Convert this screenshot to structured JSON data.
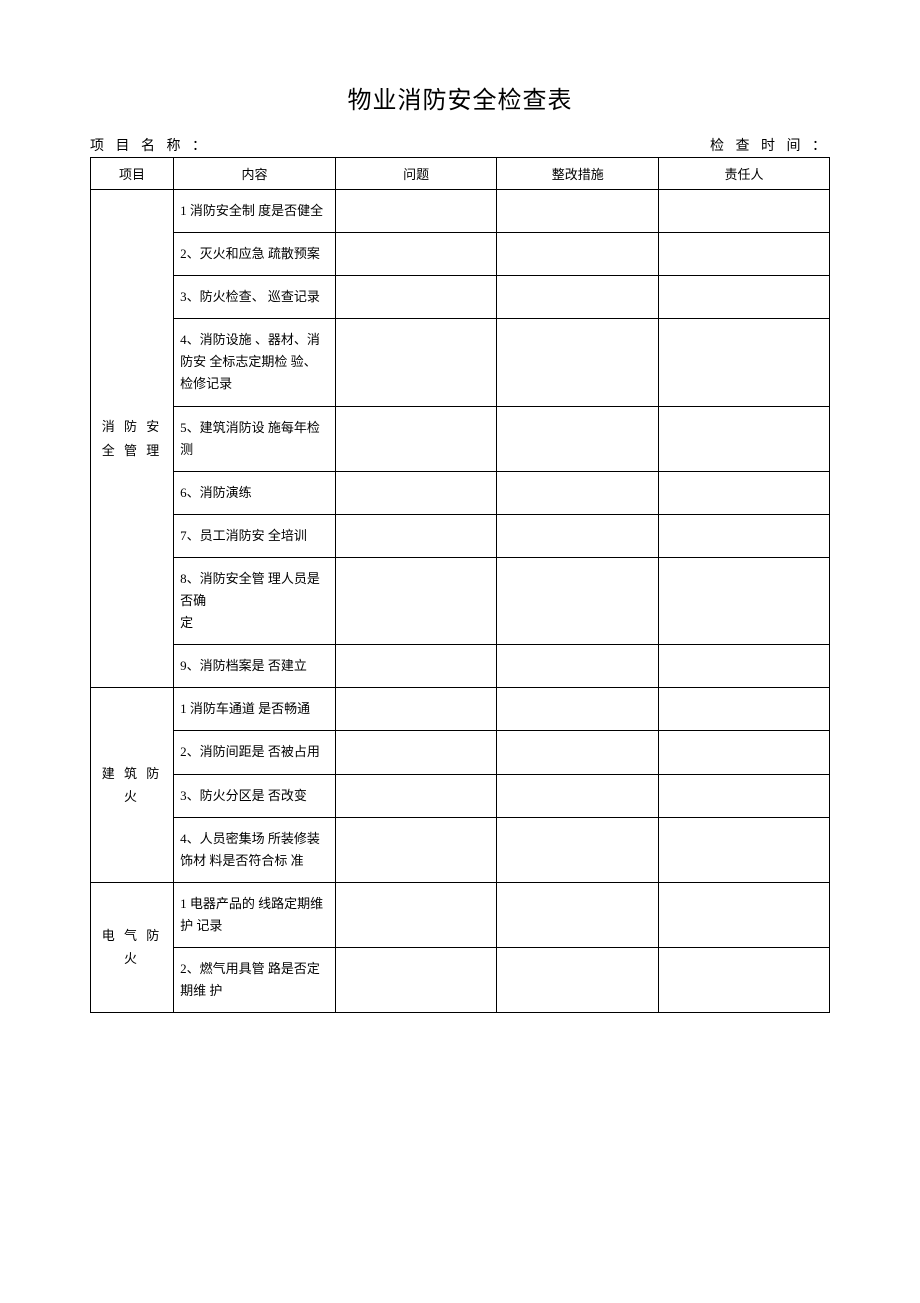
{
  "title": "物业消防安全检查表",
  "meta": {
    "project_label": "项 目 名 称 ：",
    "time_label": "检 查 时 间 ："
  },
  "headers": {
    "project": "项目",
    "content": "内容",
    "problem": "问题",
    "action": "整改措施",
    "person": "责任人"
  },
  "sections": [
    {
      "category": "消 防 安 全 管 理",
      "items": [
        "1 消防安全制 度是否健全",
        "2、灭火和应急 疏散预案",
        "3、防火检查、 巡查记录",
        "4、消防设施 、器材、消防安 全标志定期检 验、检修记录",
        "5、建筑消防设 施每年检测",
        "6、消防演练",
        "7、员工消防安 全培训",
        "8、消防安全管 理人员是否确\n定",
        "9、消防档案是 否建立"
      ]
    },
    {
      "category": "建 筑 防 火",
      "items": [
        "1 消防车通道 是否畅通",
        "2、消防间距是 否被占用",
        "3、防火分区是 否改变",
        "4、人员密集场 所装修装饰材 料是否符合标 准"
      ]
    },
    {
      "category": "电 气 防 火",
      "items": [
        "1 电器产品的 线路定期维护 记录",
        "2、燃气用具管 路是否定期维 护"
      ]
    }
  ],
  "style": {
    "background": "#ffffff",
    "border_color": "#000000",
    "title_fontsize": 24,
    "body_fontsize": 13
  }
}
